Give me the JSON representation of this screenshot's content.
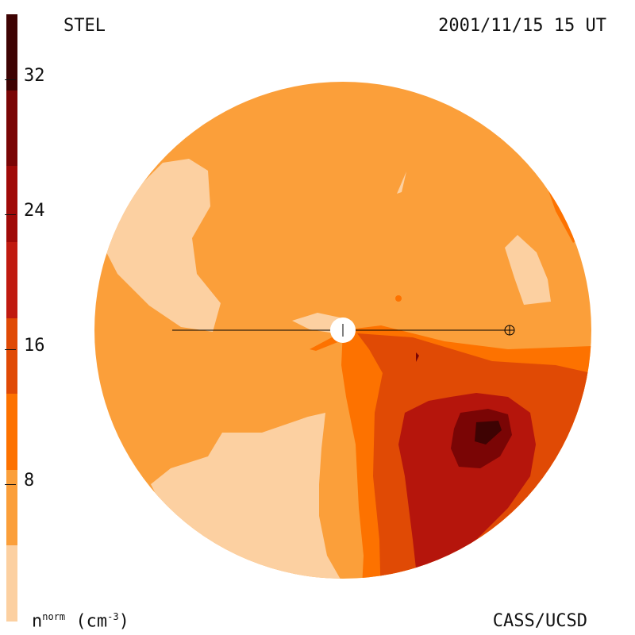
{
  "header": {
    "instrument": "STEL",
    "timestamp": "2001/11/15 15 UT"
  },
  "footer": {
    "quantity": "n",
    "quantity_sup": "norm",
    "unit": "(cm",
    "unit_sup": "-3",
    "unit_close": ")",
    "credit": "CASS/UCSD"
  },
  "colorbar": {
    "ticks": [
      "8",
      "16",
      "24",
      "32"
    ],
    "levels": [
      "#fcd0a1",
      "#fb9f3a",
      "#fd7200",
      "#e04a05",
      "#c01a10",
      "#a00a08",
      "#7a0505",
      "#3e0303"
    ]
  },
  "map_colors": {
    "background": "#fb9f3a",
    "light": "#fcd0a1",
    "orange": "#fd7200",
    "dark_orange": "#e04a05",
    "red": "#b5150c",
    "dark_red": "#7a0505",
    "darkest": "#3e0303"
  }
}
